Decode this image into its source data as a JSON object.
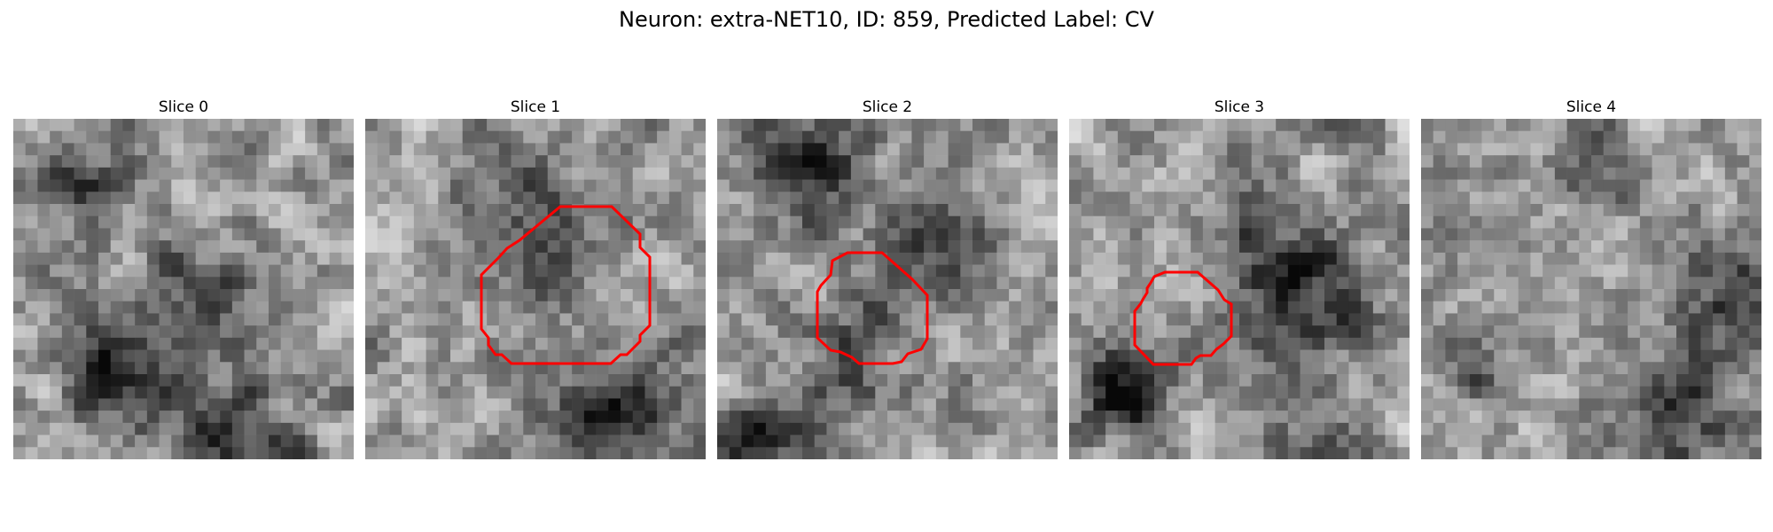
{
  "figure": {
    "title": "Neuron: extra-NET10, ID: 859, Predicted Label: CV",
    "outline_color": "#ff0000"
  },
  "slices": [
    {
      "title": "Slice 0",
      "has_outline": false
    },
    {
      "title": "Slice 1",
      "has_outline": true
    },
    {
      "title": "Slice 2",
      "has_outline": true
    },
    {
      "title": "Slice 3",
      "has_outline": true
    },
    {
      "title": "Slice 4",
      "has_outline": false
    }
  ]
}
